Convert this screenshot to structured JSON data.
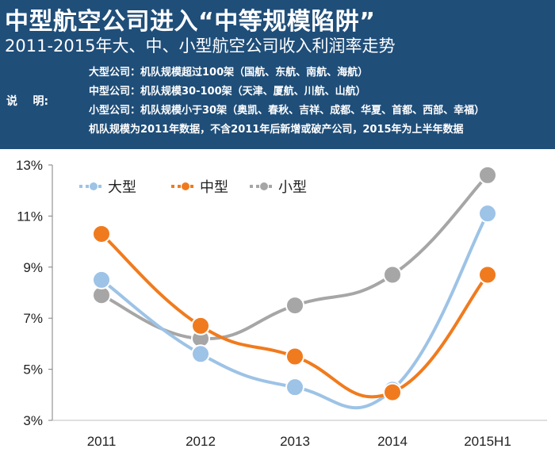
{
  "header": {
    "title": "中型航空公司进入“中等规模陷阱”",
    "subtitle": "2011-2015年大、中、小型航空公司收入利润率走势",
    "note_label": "说    明:",
    "notes": [
      "大型公司：机队规模超过100架（国航、东航、南航、海航）",
      "中型公司：机队规模30-100架（天津、厦航、川航、山航）",
      "小型公司：机队规模小于30架（奥凯、春秋、吉祥、成都、华夏、首都、西部、幸福）",
      "机队规模为2011年数据，不含2011年后新增或破产公司，2015年为上半年数据"
    ]
  },
  "chart_data": {
    "type": "line",
    "title": "",
    "xlabel": "",
    "ylabel": "",
    "categories": [
      "2011",
      "2012",
      "2013",
      "2014",
      "2015H1"
    ],
    "y_ticks": [
      "3%",
      "5%",
      "7%",
      "9%",
      "11%",
      "13%"
    ],
    "ylim": [
      3,
      13
    ],
    "grid": false,
    "legend_position": "top-left",
    "series": [
      {
        "name": "大型",
        "values": [
          8.5,
          5.6,
          4.3,
          4.2,
          11.1
        ],
        "color": "#9dc3e6"
      },
      {
        "name": "中型",
        "values": [
          10.3,
          6.7,
          5.5,
          4.1,
          8.7
        ],
        "color": "#f07b1e"
      },
      {
        "name": "小型",
        "values": [
          7.9,
          6.2,
          7.5,
          8.7,
          12.6
        ],
        "color": "#a6a6a6"
      }
    ]
  }
}
